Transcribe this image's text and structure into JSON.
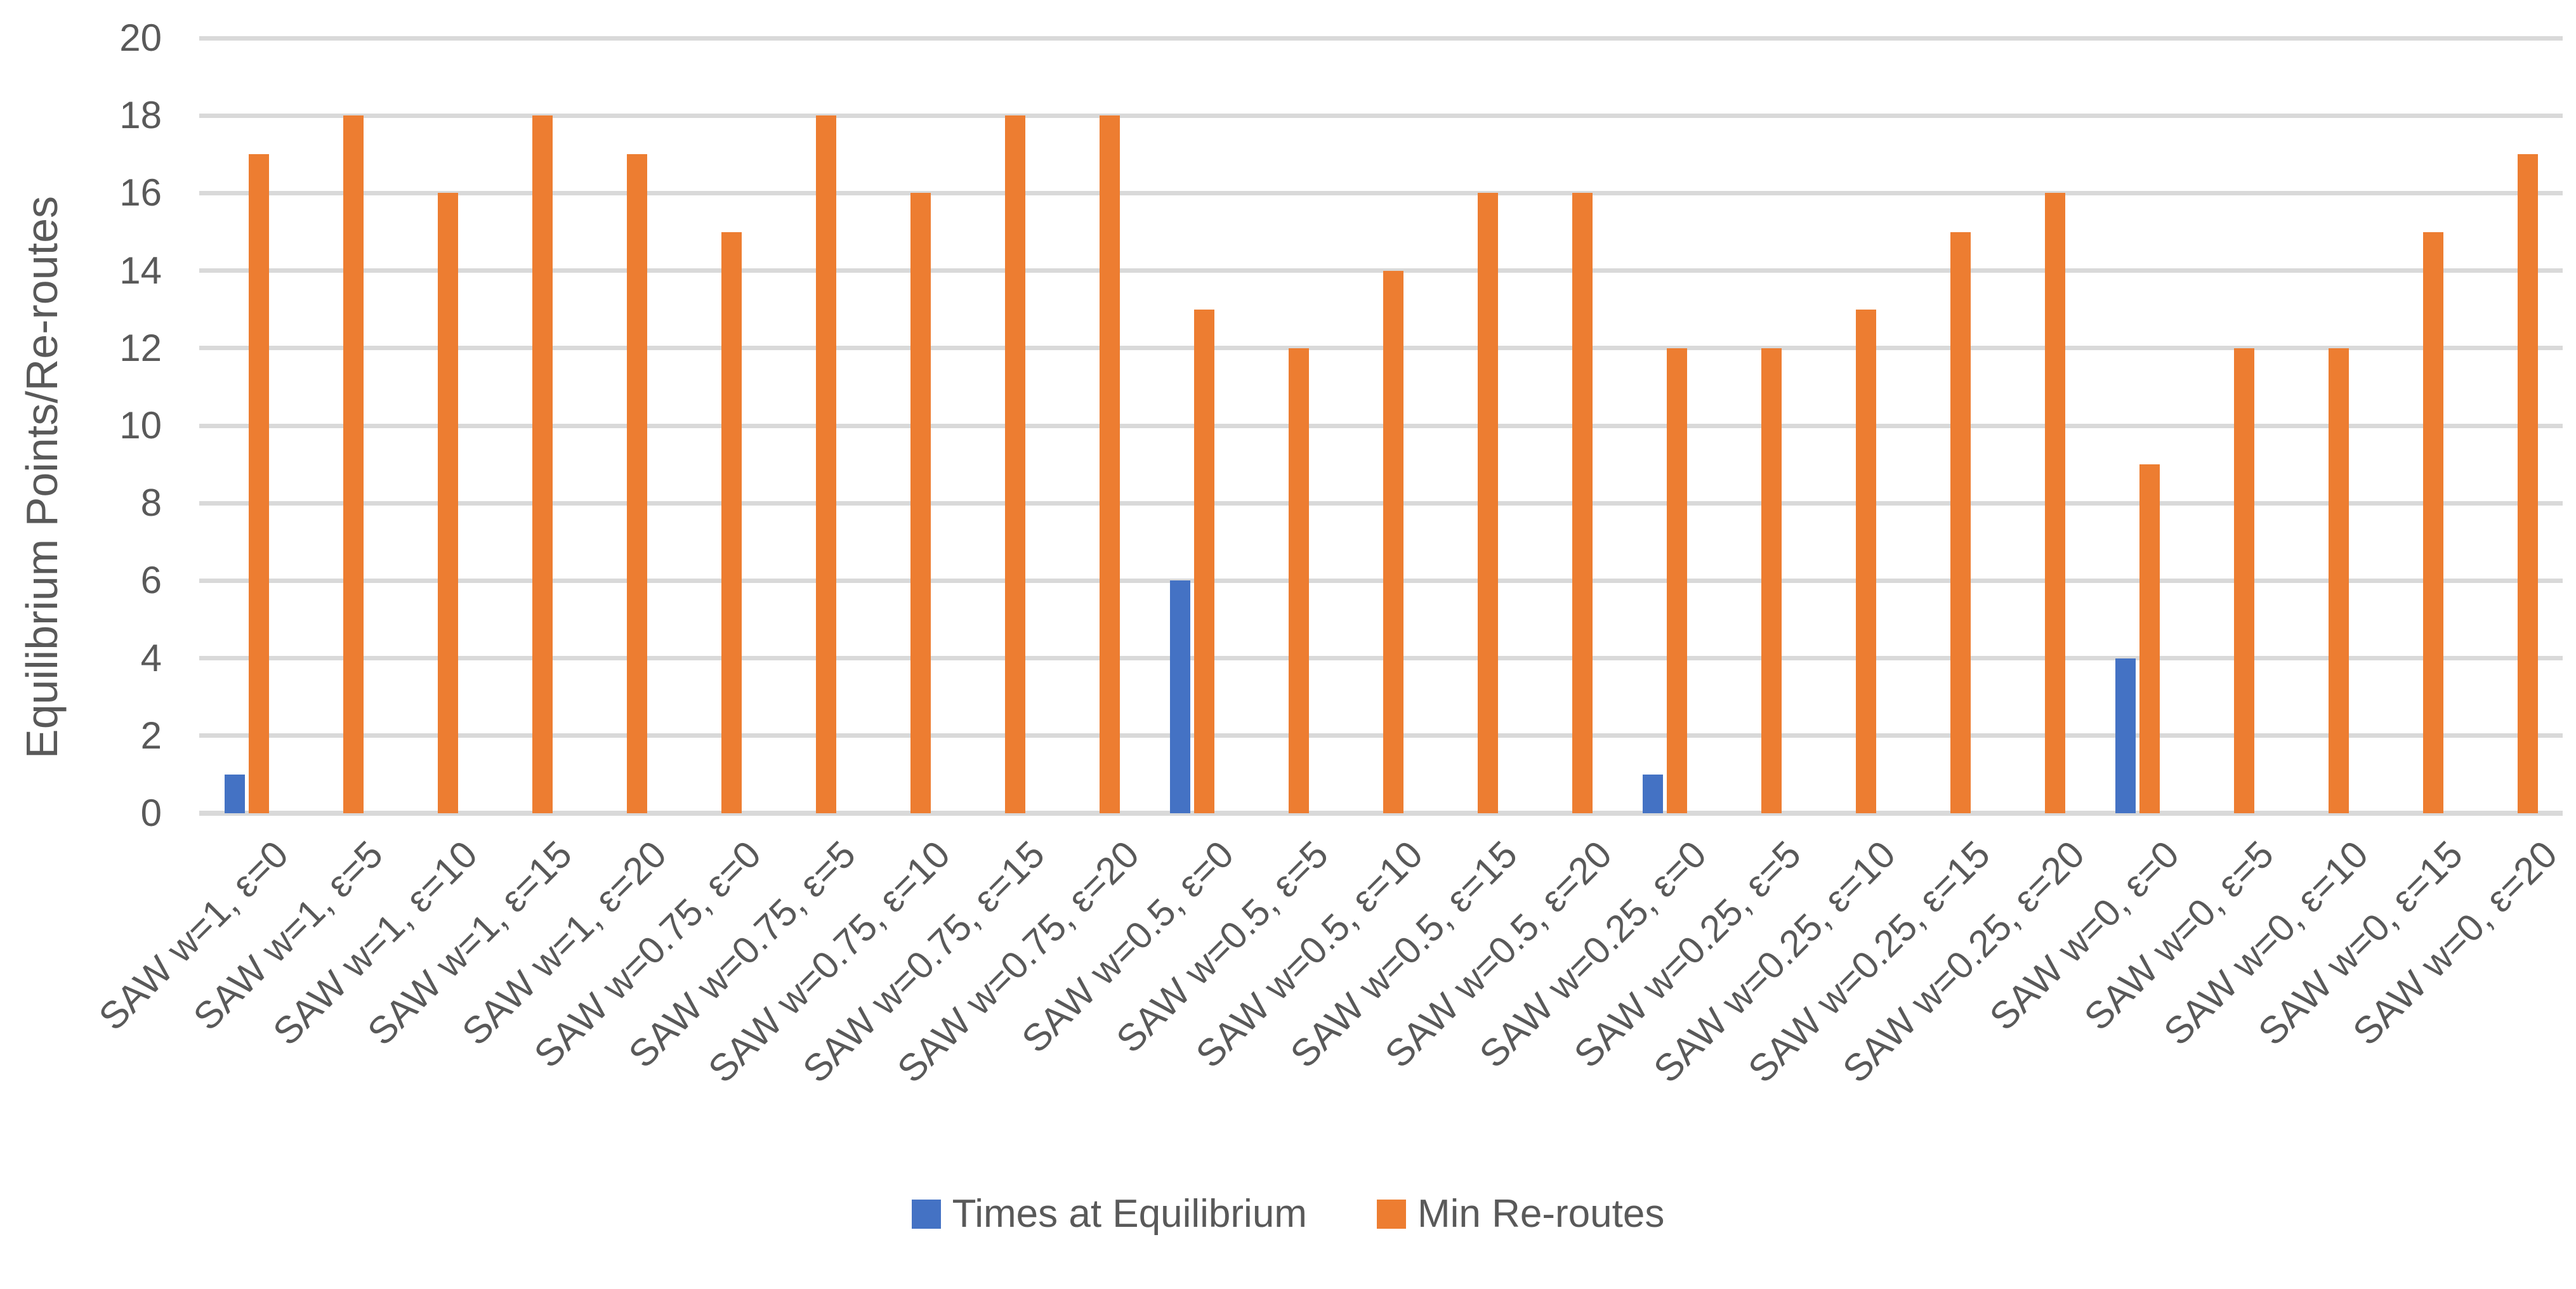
{
  "chart_data": {
    "type": "bar",
    "title": "",
    "ylabel": "Equilibrium Points/Re-routes",
    "xlabel": "",
    "ylim": [
      0,
      20
    ],
    "ytick_step": 2,
    "grid": true,
    "legend_position": "bottom",
    "colors": {
      "gridline": "#D9D9D9",
      "axis_line": "#D9D9D9",
      "text": "#595959",
      "background": "#FFFFFF"
    },
    "categories": [
      "SAW w=1, ε=0",
      "SAW w=1, ε=5",
      "SAW w=1, ε=10",
      "SAW w=1, ε=15",
      "SAW w=1, ε=20",
      "SAW w=0.75, ε=0",
      "SAW w=0.75, ε=5",
      "SAW w=0.75, ε=10",
      "SAW w=0.75, ε=15",
      "SAW w=0.75, ε=20",
      "SAW w=0.5, ε=0",
      "SAW w=0.5, ε=5",
      "SAW w=0.5, ε=10",
      "SAW w=0.5, ε=15",
      "SAW w=0.5, ε=20",
      "SAW w=0.25, ε=0",
      "SAW w=0.25, ε=5",
      "SAW w=0.25, ε=10",
      "SAW w=0.25, ε=15",
      "SAW w=0.25, ε=20",
      "SAW w=0, ε=0",
      "SAW w=0, ε=5",
      "SAW w=0, ε=10",
      "SAW w=0, ε=15",
      "SAW w=0, ε=20"
    ],
    "series": [
      {
        "name": "Times at Equilibrium",
        "color": "#4472C4",
        "values": [
          1,
          0,
          0,
          0,
          0,
          0,
          0,
          0,
          0,
          0,
          6,
          0,
          0,
          0,
          0,
          1,
          0,
          0,
          0,
          0,
          4,
          0,
          0,
          0,
          0
        ]
      },
      {
        "name": "Min Re-routes",
        "color": "#ED7D31",
        "values": [
          17,
          18,
          16,
          18,
          17,
          15,
          18,
          16,
          18,
          18,
          13,
          12,
          14,
          16,
          16,
          12,
          12,
          13,
          15,
          16,
          9,
          12,
          12,
          15,
          17
        ]
      }
    ]
  }
}
